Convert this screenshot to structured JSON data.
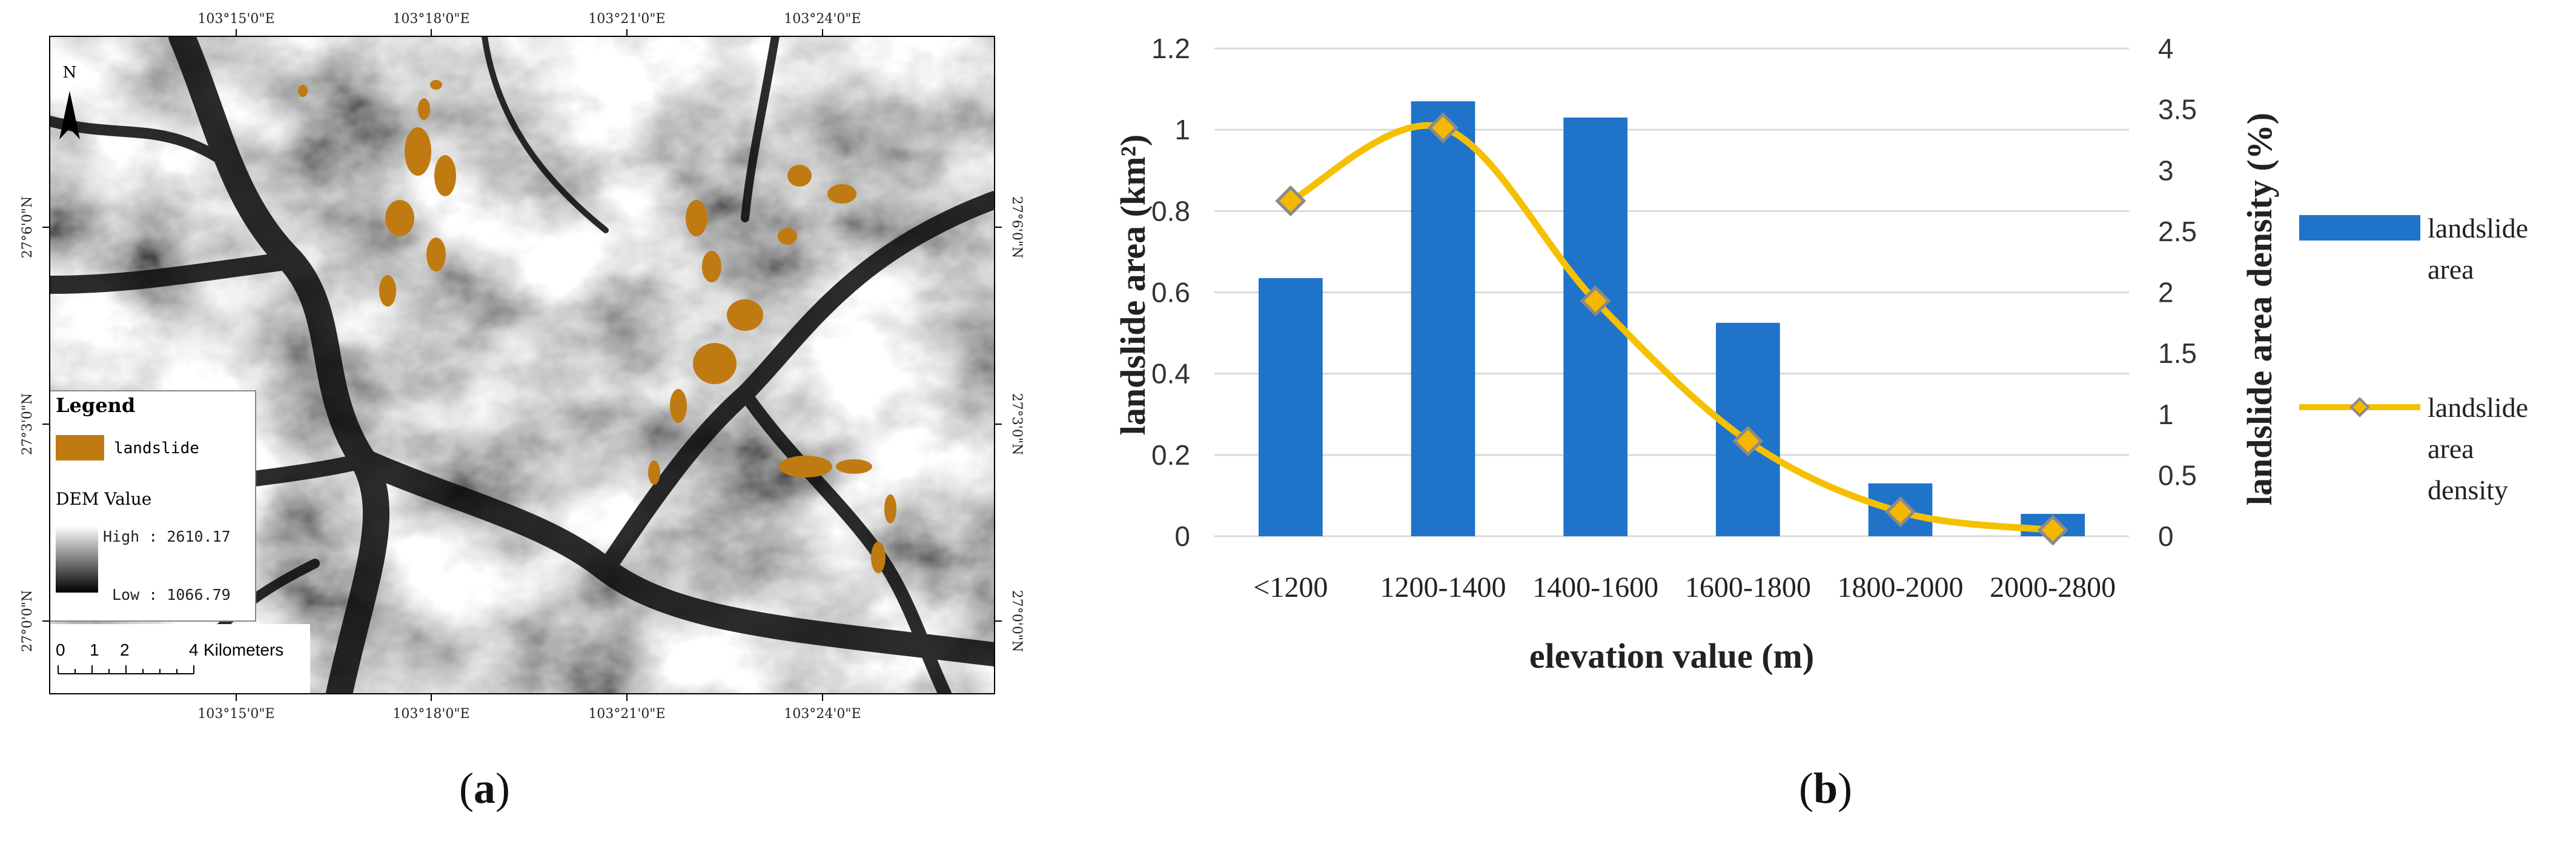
{
  "panel_a": {
    "caption_open": "(",
    "caption_letter": "a",
    "caption_close": ")",
    "top_ticks": [
      "103°15'0\"E",
      "103°18'0\"E",
      "103°21'0\"E",
      "103°24'0\"E"
    ],
    "bottom_ticks": [
      "103°15'0\"E",
      "103°18'0\"E",
      "103°21'0\"E",
      "103°24'0\"E"
    ],
    "left_ticks": [
      "27°6'0\"N",
      "27°3'0\"N",
      "27°0'0\"N"
    ],
    "right_ticks": [
      "27°6'0\"N",
      "27°3'0\"N",
      "27°0'0\"N"
    ],
    "north_label": "N",
    "legend": {
      "title": "Legend",
      "landslide_label": "landslide",
      "dem_title": "DEM Value",
      "high_label": "High : 2610.17",
      "low_label": "Low : 1066.79"
    },
    "scalebar": {
      "ticks": [
        "0",
        "1",
        "2",
        "4"
      ],
      "unit": "Kilometers"
    },
    "colors": {
      "landslide": "#c07a12",
      "dem_high": "#ffffff",
      "dem_low": "#000000"
    }
  },
  "panel_b": {
    "caption_open": "(",
    "caption_letter": "b",
    "caption_close": ")"
  },
  "chart_data": {
    "type": "bar",
    "categories": [
      "<1200",
      "1200-1400",
      "1400-1600",
      "1600-1800",
      "1800-2000",
      "2000-2800"
    ],
    "series": [
      {
        "name": "landslide area",
        "type": "bar",
        "axis": "left",
        "color": "#1f73c8",
        "values": [
          0.635,
          1.07,
          1.03,
          0.525,
          0.13,
          0.055
        ]
      },
      {
        "name": "landslide area density",
        "type": "line",
        "axis": "right",
        "color": "#f5c000",
        "marker_color": "#f5b800",
        "marker_edge": "#8a8a8a",
        "values": [
          2.75,
          3.35,
          1.93,
          0.78,
          0.2,
          0.05
        ]
      }
    ],
    "ylabel": "landslide area (km²)",
    "ylabel2": "landslide area density (%)",
    "xlabel": "elevation value (m)",
    "ylim": [
      0,
      1.2
    ],
    "y_ticks": [
      "0",
      "0.2",
      "0.4",
      "0.6",
      "0.8",
      "1",
      "1.2"
    ],
    "y2lim": [
      0,
      4
    ],
    "y2_ticks": [
      "0",
      "0.5",
      "1",
      "1.5",
      "2",
      "2.5",
      "3",
      "3.5",
      "4"
    ],
    "grid": true,
    "legend_position": "right",
    "legend_labels": [
      [
        "landslide",
        "area"
      ],
      [
        "landslide",
        "area",
        "density"
      ]
    ]
  }
}
